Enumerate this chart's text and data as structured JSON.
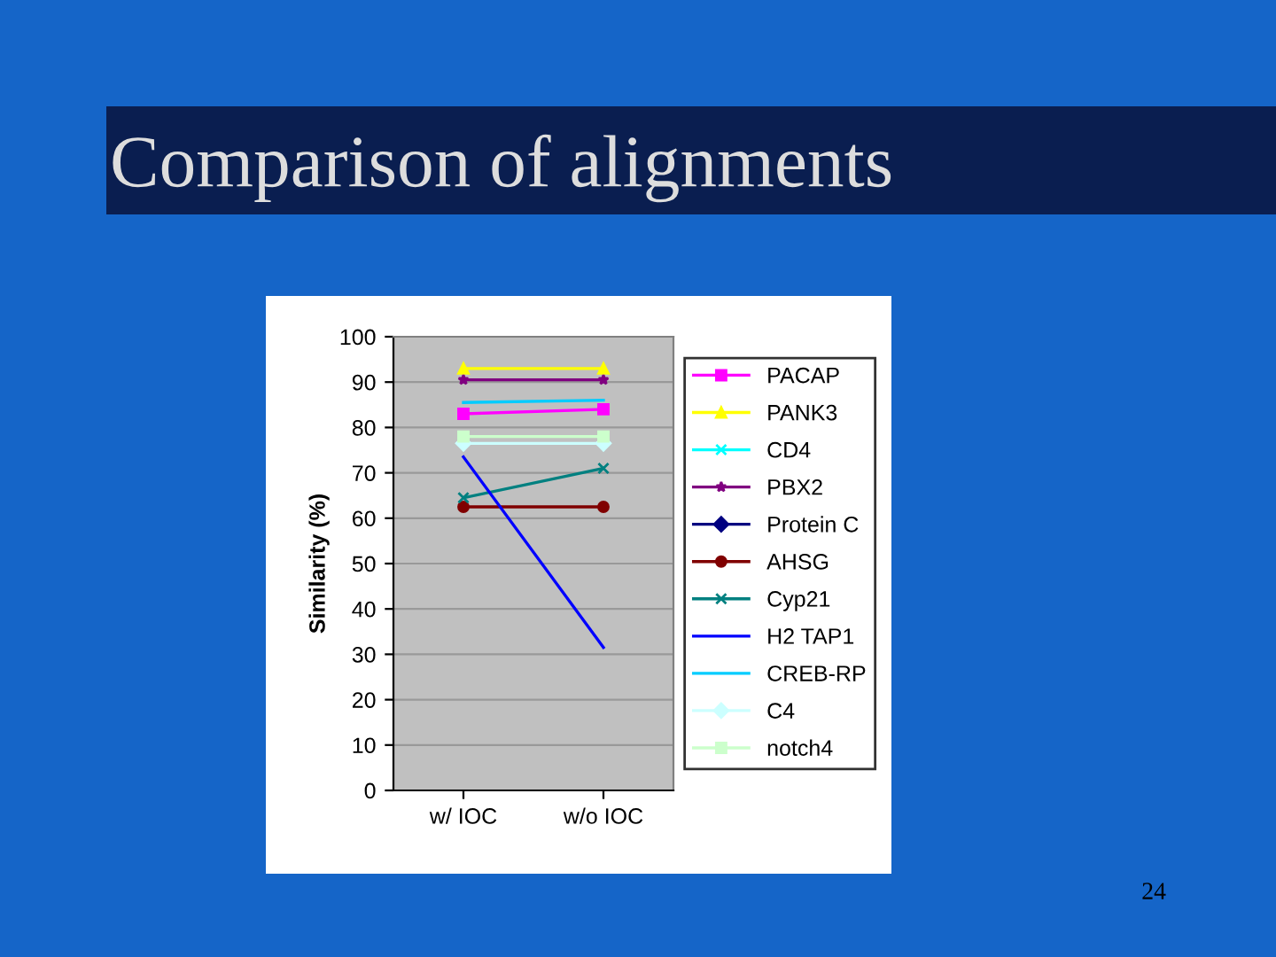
{
  "chart_data": {
    "type": "line",
    "title": "Comparison of alignments",
    "ylabel": "Similarity (%)",
    "categories": [
      "w/ IOC",
      "w/o IOC"
    ],
    "series": [
      {
        "name": "PACAP",
        "color": "#ff00ff",
        "marker": "square",
        "values": [
          83,
          84
        ]
      },
      {
        "name": "PANK3",
        "color": "#ffff00",
        "marker": "triangle",
        "values": [
          93,
          93
        ]
      },
      {
        "name": "CD4",
        "color": "#00ffff",
        "marker": "cross",
        "values": [
          null,
          null
        ]
      },
      {
        "name": "PBX2",
        "color": "#800080",
        "marker": "star",
        "values": [
          90.5,
          90.5
        ]
      },
      {
        "name": "Protein C",
        "color": "#000080",
        "marker": "diamond",
        "values": [
          null,
          null
        ]
      },
      {
        "name": "AHSG",
        "color": "#800000",
        "marker": "circle",
        "values": [
          62.5,
          62.5
        ]
      },
      {
        "name": "Cyp21",
        "color": "#008080",
        "marker": "cross",
        "values": [
          64.5,
          71
        ]
      },
      {
        "name": "H2 TAP1",
        "color": "#0000ff",
        "marker": "none",
        "values": [
          73.5,
          31.5
        ]
      },
      {
        "name": "CREB-RP",
        "color": "#00ccff",
        "marker": "none",
        "values": [
          85.5,
          86
        ]
      },
      {
        "name": "C4",
        "color": "#ccffff",
        "marker": "diamond",
        "values": [
          76.5,
          76.5
        ]
      },
      {
        "name": "notch4",
        "color": "#ccffcc",
        "marker": "square",
        "values": [
          78,
          78
        ]
      }
    ],
    "ylim": [
      0,
      100
    ],
    "yticks": [
      0,
      10,
      20,
      30,
      40,
      50,
      60,
      70,
      80,
      90,
      100
    ],
    "grid": "y",
    "legend": "right",
    "line_style": "solid",
    "annotations": [
      "24"
    ]
  }
}
